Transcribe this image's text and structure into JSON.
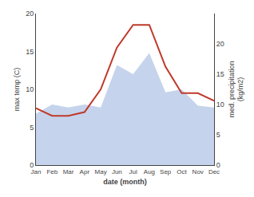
{
  "chart_data": {
    "type": "line",
    "xlabel": "date (month)",
    "ylabel": "max temp (C)",
    "y2label": "med. precipitation\n(kg/m2)",
    "categories": [
      "Jan",
      "Feb",
      "Mar",
      "Apr",
      "May",
      "Jun",
      "Jul",
      "Aug",
      "Sep",
      "Oct",
      "Nov",
      "Dec"
    ],
    "series": [
      {
        "type": "area",
        "axis": "y2",
        "color": "#c5d4ec",
        "values": [
          8.5,
          10.0,
          9.5,
          10.0,
          9.5,
          16.5,
          15.0,
          18.5,
          12.0,
          12.5,
          9.8,
          9.5
        ]
      },
      {
        "type": "line",
        "color": "#c0392b",
        "values": [
          7.5,
          6.5,
          6.5,
          7.0,
          10.0,
          15.5,
          18.5,
          18.5,
          13.0,
          9.5,
          9.5,
          8.5
        ]
      }
    ],
    "ylim": [
      0,
      20
    ],
    "yticks": [
      0,
      5,
      10,
      15,
      20
    ],
    "y2lim": [
      0,
      25
    ],
    "y2ticks": [
      0,
      5,
      10,
      15,
      20
    ],
    "grid": false
  }
}
